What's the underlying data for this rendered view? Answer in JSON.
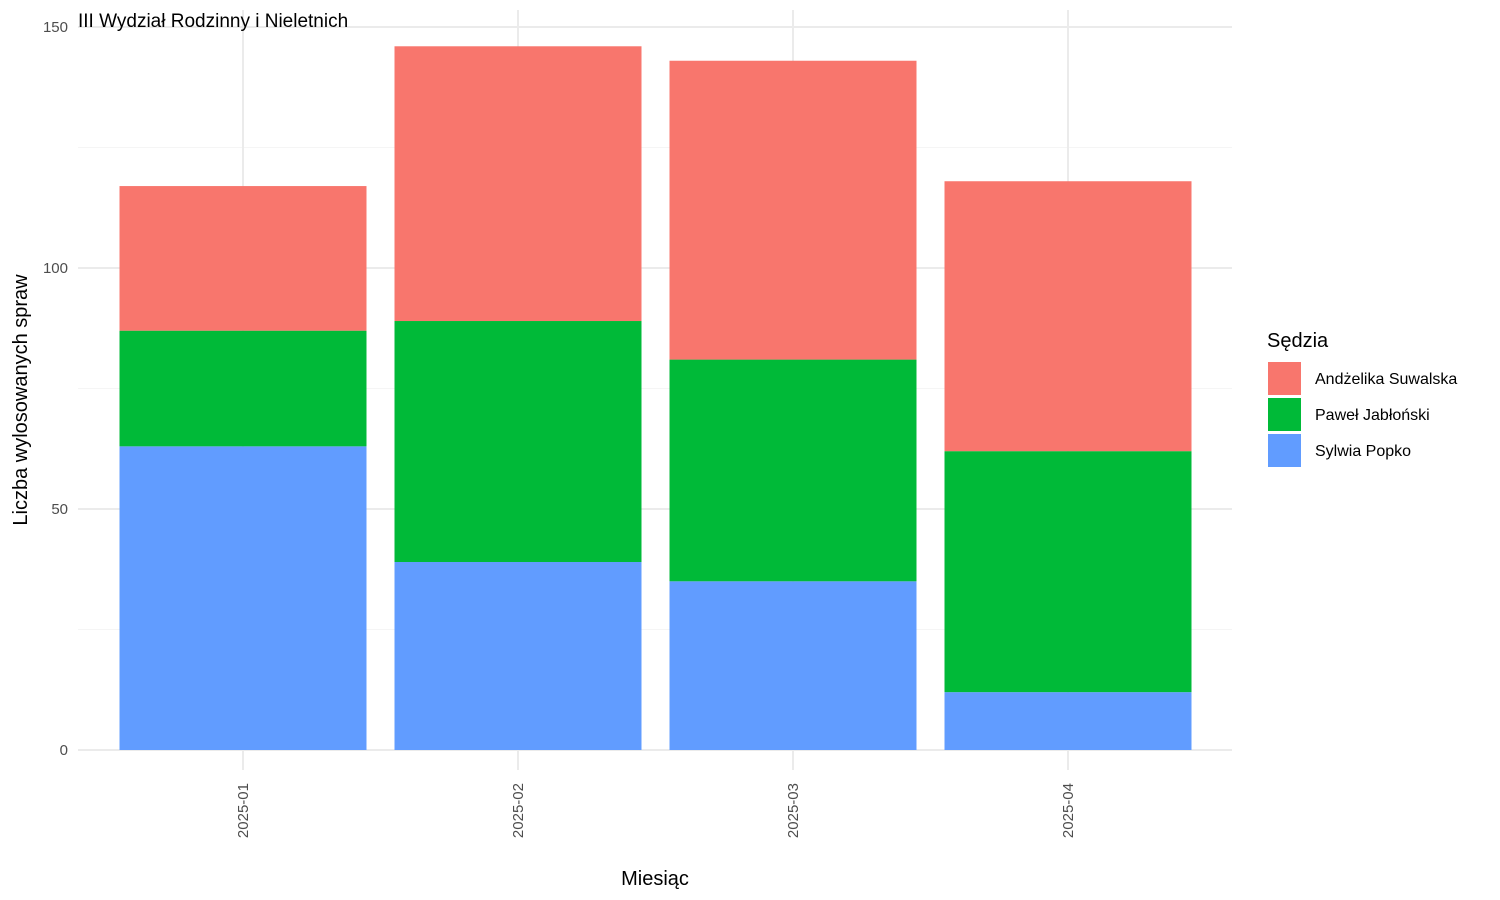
{
  "chart_data": {
    "type": "bar",
    "stacked": true,
    "title": "III Wydział Rodzinny i Nieletnich",
    "xlabel": "Miesiąc",
    "ylabel": "Liczba wylosowanych spraw",
    "ylim": [
      0,
      150
    ],
    "yticks": [
      0,
      50,
      100,
      150
    ],
    "grid": true,
    "legend": {
      "title": "Sędzia",
      "position": "right"
    },
    "categories": [
      "2025-01",
      "2025-02",
      "2025-03",
      "2025-04"
    ],
    "series": [
      {
        "name": "Sylwia Popko",
        "color": "#619CFF",
        "values": [
          63,
          39,
          35,
          12
        ]
      },
      {
        "name": "Paweł Jabłoński",
        "color": "#00BA38",
        "values": [
          24,
          50,
          46,
          50
        ]
      },
      {
        "name": "Andżelika Suwalska",
        "color": "#F8766D",
        "values": [
          30,
          57,
          62,
          56
        ]
      }
    ],
    "legend_order": [
      "Andżelika Suwalska",
      "Paweł Jabłoński",
      "Sylwia Popko"
    ]
  }
}
